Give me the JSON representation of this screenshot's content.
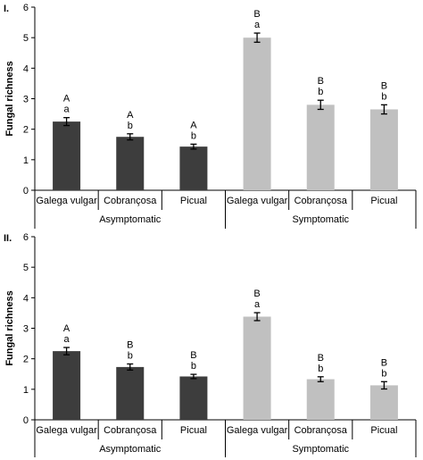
{
  "chart_data": [
    {
      "type": "bar",
      "panel_label": "I.",
      "ylabel": "Fungal richness",
      "ylim": [
        0,
        6
      ],
      "yticks": [
        "0",
        "1",
        "2",
        "3",
        "4",
        "5",
        "6"
      ],
      "groups": [
        "Asymptomatic",
        "Symptomatic"
      ],
      "categories": [
        "Galega vulgar",
        "Cobrançosa",
        "Picual",
        "Galega vulgar",
        "Cobrançosa",
        "Picual"
      ],
      "values": [
        2.25,
        1.75,
        1.43,
        5.0,
        2.8,
        2.65
      ],
      "errors": [
        0.13,
        0.1,
        0.08,
        0.15,
        0.15,
        0.15
      ],
      "upper_letters": [
        "A",
        "A",
        "A",
        "B",
        "B",
        "B"
      ],
      "lower_letters": [
        "a",
        "b",
        "b",
        "a",
        "b",
        "b"
      ],
      "colors": [
        "#3d3d3d",
        "#3d3d3d",
        "#3d3d3d",
        "#c0c0c0",
        "#c0c0c0",
        "#c0c0c0"
      ]
    },
    {
      "type": "bar",
      "panel_label": "II.",
      "ylabel": "Fungal richness",
      "ylim": [
        0,
        6
      ],
      "yticks": [
        "0",
        "1",
        "2",
        "3",
        "4",
        "5",
        "6"
      ],
      "groups": [
        "Asymptomatic",
        "Symptomatic"
      ],
      "categories": [
        "Galega vulgar",
        "Cobrançosa",
        "Picual",
        "Galega vulgar",
        "Cobrançosa",
        "Picual"
      ],
      "values": [
        2.25,
        1.73,
        1.42,
        3.38,
        1.33,
        1.13
      ],
      "errors": [
        0.12,
        0.1,
        0.07,
        0.13,
        0.08,
        0.12
      ],
      "upper_letters": [
        "A",
        "B",
        "B",
        "B",
        "B",
        "B"
      ],
      "lower_letters": [
        "a",
        "b",
        "b",
        "a",
        "b",
        "b"
      ],
      "colors": [
        "#3d3d3d",
        "#3d3d3d",
        "#3d3d3d",
        "#c0c0c0",
        "#c0c0c0",
        "#c0c0c0"
      ]
    }
  ]
}
